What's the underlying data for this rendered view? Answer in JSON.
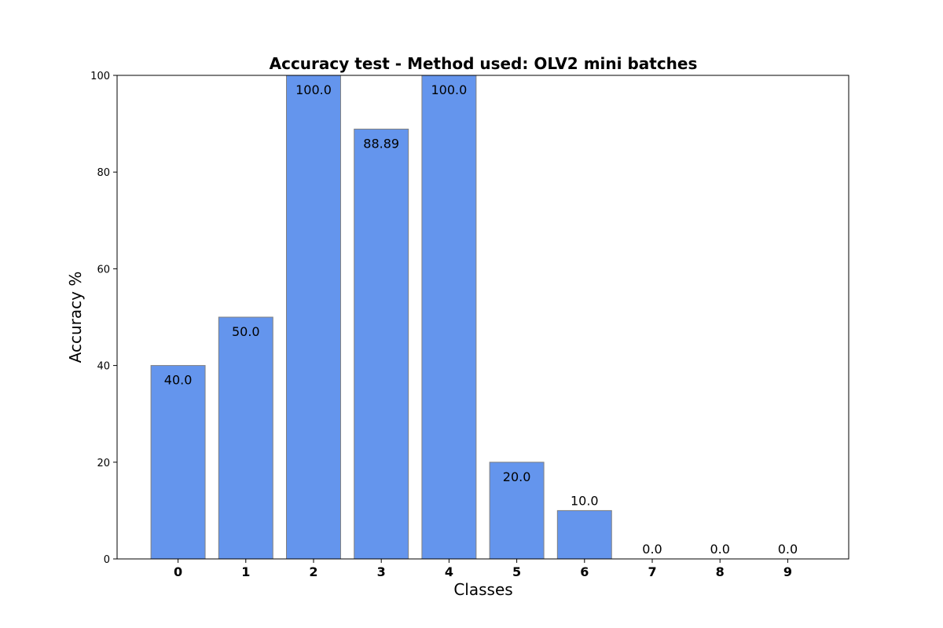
{
  "chart_data": {
    "type": "bar",
    "title": "Accuracy test - Method used: OLV2 mini batches",
    "xlabel": "Classes",
    "ylabel": "Accuracy %",
    "categories": [
      "0",
      "1",
      "2",
      "3",
      "4",
      "5",
      "6",
      "7",
      "8",
      "9"
    ],
    "values": [
      40.0,
      50.0,
      100.0,
      88.89,
      100.0,
      20.0,
      10.0,
      0.0,
      0.0,
      0.0
    ],
    "value_labels": [
      "40.0",
      "50.0",
      "100.0",
      "88.89",
      "100.0",
      "20.0",
      "10.0",
      "0.0",
      "0.0",
      "0.0"
    ],
    "ylim": [
      0,
      100
    ],
    "yticks": [
      "0",
      "20",
      "40",
      "60",
      "80",
      "100"
    ],
    "grid": false,
    "bar_color": "#6495ed",
    "bar_edge_color": "#808080"
  }
}
